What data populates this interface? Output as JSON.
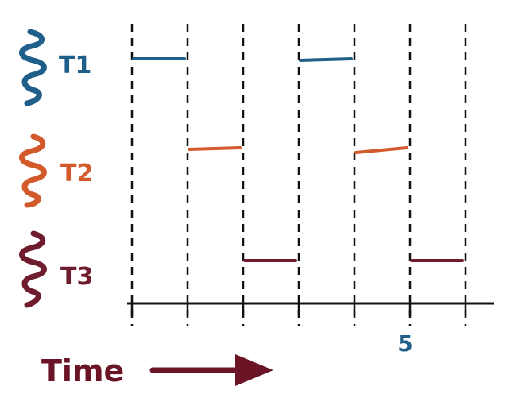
{
  "diagram": {
    "threads": [
      {
        "label": "T1",
        "color": "#1f5f8a",
        "runs": [
          [
            0,
            1
          ],
          [
            3,
            4
          ]
        ]
      },
      {
        "label": "T2",
        "color": "#d35a2a",
        "runs": [
          [
            1,
            2
          ],
          [
            4,
            5
          ]
        ]
      },
      {
        "label": "T3",
        "color": "#6e1c2e",
        "runs": [
          [
            2,
            3
          ],
          [
            5,
            6
          ]
        ]
      }
    ],
    "time_slots": 6,
    "axis_tick_label": "5",
    "axis_tick_value": 5,
    "axis_label": "Time",
    "colors": {
      "axis": "#111111",
      "tick_label": "#1f5f8a",
      "time_text": "#6a1426",
      "time_arrow": "#6a1426"
    }
  }
}
